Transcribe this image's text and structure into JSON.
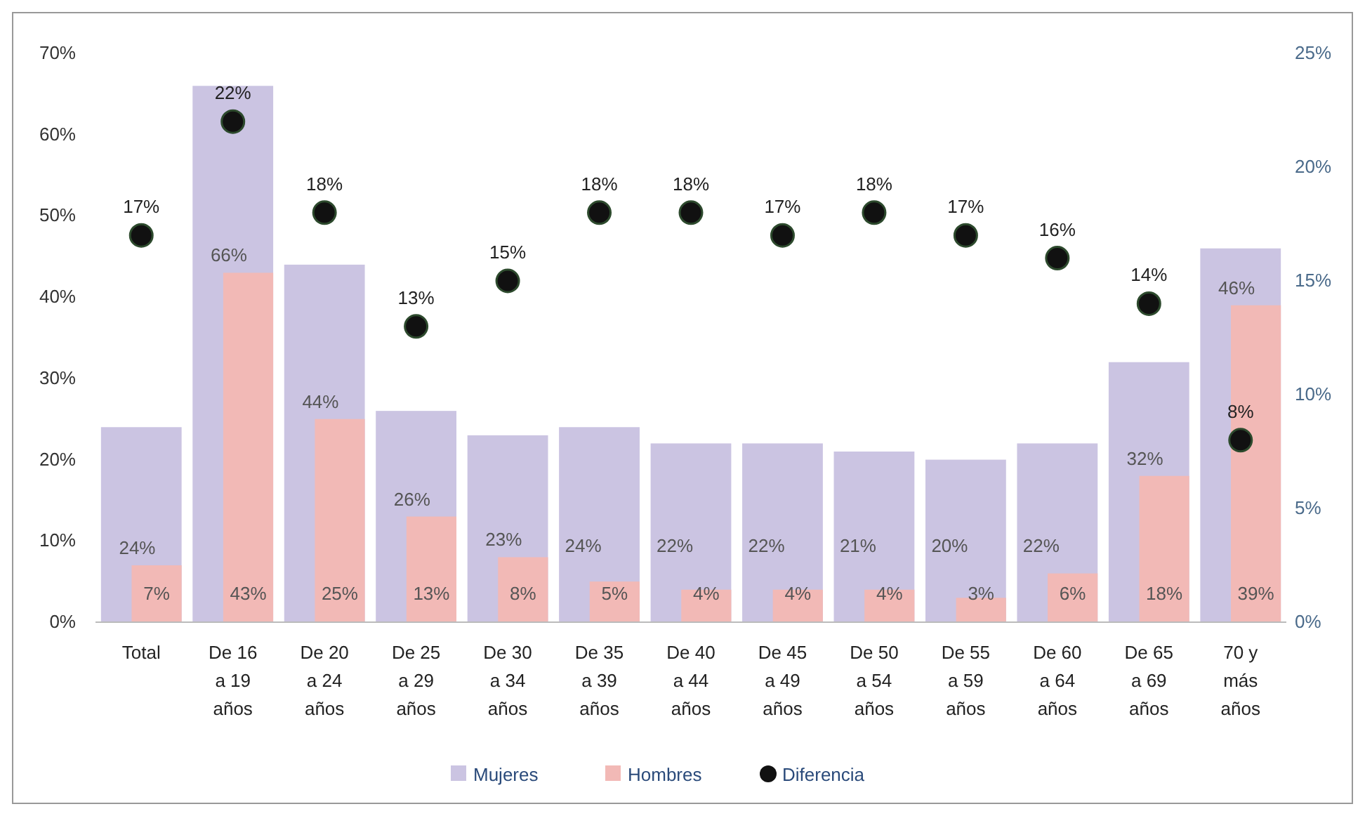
{
  "chart_data": {
    "type": "bar",
    "categories": [
      "Total",
      "De 16 a 19 años",
      "De 20 a 24 años",
      "De 25 a 29 años",
      "De 30 a 34 años",
      "De 35 a 39 años",
      "De 40 a 44 años",
      "De 45 a 49 años",
      "De 50 a 54 años",
      "De 55 a 59 años",
      "De 60 a 64 años",
      "De 65 a 69 años",
      "70 y más años"
    ],
    "series": [
      {
        "name": "Mujeres",
        "color": "#cbc4e2",
        "values": [
          24,
          66,
          44,
          26,
          23,
          24,
          22,
          22,
          21,
          20,
          22,
          32,
          46
        ],
        "value_labels": [
          "24%",
          "66%",
          "44%",
          "26%",
          "23%",
          "24%",
          "22%",
          "22%",
          "21%",
          "20%",
          "22%",
          "32%",
          "46%"
        ]
      },
      {
        "name": "Hombres",
        "color": "#f2b9b6",
        "values": [
          7,
          43,
          25,
          13,
          8,
          5,
          4,
          4,
          4,
          3,
          6,
          18,
          39
        ],
        "value_labels": [
          "7%",
          "43%",
          "25%",
          "13%",
          "8%",
          "5%",
          "4%",
          "4%",
          "4%",
          "3%",
          "6%",
          "18%",
          "39%"
        ]
      },
      {
        "name": "Diferencia",
        "type": "scatter",
        "axis": "y2",
        "marker": "circle",
        "color": "#111111",
        "values": [
          17,
          22,
          18,
          13,
          15,
          18,
          18,
          17,
          18,
          17,
          16,
          14,
          8
        ],
        "value_labels": [
          "17%",
          "22%",
          "18%",
          "13%",
          "15%",
          "18%",
          "18%",
          "17%",
          "18%",
          "17%",
          "16%",
          "14%",
          "8%"
        ]
      }
    ],
    "ylim": [
      0,
      70
    ],
    "yticks": [
      {
        "value": 0,
        "label": "0%"
      },
      {
        "value": 10,
        "label": "10%"
      },
      {
        "value": 20,
        "label": "20%"
      },
      {
        "value": 30,
        "label": "30%"
      },
      {
        "value": 40,
        "label": "40%"
      },
      {
        "value": 50,
        "label": "50%"
      },
      {
        "value": 60,
        "label": "60%"
      },
      {
        "value": 70,
        "label": "70%"
      }
    ],
    "y2lim": [
      0,
      25
    ],
    "y2ticks": [
      {
        "value": 0,
        "label": "0%"
      },
      {
        "value": 5,
        "label": "5%"
      },
      {
        "value": 10,
        "label": "10%"
      },
      {
        "value": 15,
        "label": "15%"
      },
      {
        "value": 20,
        "label": "20%"
      },
      {
        "value": 25,
        "label": "25%"
      }
    ],
    "grid": false,
    "legend": "bottom"
  }
}
